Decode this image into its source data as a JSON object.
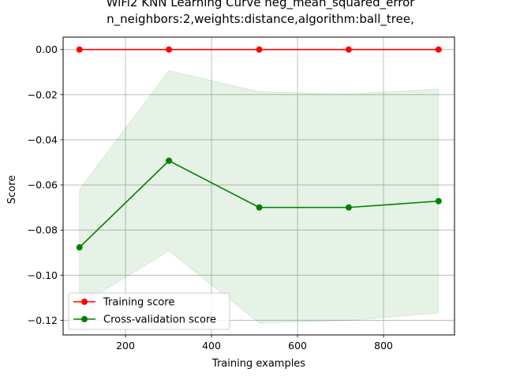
{
  "chart_data": {
    "type": "line",
    "title_lines": [
      "WiFi2 KNN Learning Curve neg_mean_squared_error",
      "n_neighbors:2,weights:distance,algorithm:ball_tree,"
    ],
    "xlabel": "Training examples",
    "ylabel": "Score",
    "xlim": [
      55,
      965
    ],
    "ylim": [
      -0.1265,
      0.0055
    ],
    "xticks": [
      200,
      400,
      600,
      800
    ],
    "xtick_labels": [
      "200",
      "400",
      "600",
      "800"
    ],
    "yticks": [
      0.0,
      -0.02,
      -0.04,
      -0.06,
      -0.08,
      -0.1,
      -0.12
    ],
    "ytick_labels": [
      "0.00",
      "−0.02",
      "−0.04",
      "−0.06",
      "−0.08",
      "−0.10",
      "−0.12"
    ],
    "grid": true,
    "legend_position": "lower-left",
    "x": [
      93,
      301,
      511,
      719,
      928
    ],
    "series": [
      {
        "name": "Training score",
        "color": "#ff0000",
        "values": [
          0.0,
          0.0,
          0.0,
          0.0,
          0.0
        ],
        "band_lower": [
          0.0,
          0.0,
          0.0,
          0.0,
          0.0
        ],
        "band_upper": [
          0.0,
          0.0,
          0.0,
          0.0,
          0.0
        ]
      },
      {
        "name": "Cross-validation score",
        "color": "#008000",
        "values": [
          -0.0877,
          -0.0493,
          -0.07,
          -0.07,
          -0.0672
        ],
        "band_lower": [
          -0.1135,
          -0.0893,
          -0.1212,
          -0.1202,
          -0.1168
        ],
        "band_upper": [
          -0.062,
          -0.0093,
          -0.0187,
          -0.0197,
          -0.0175
        ]
      }
    ],
    "band_color": "#008000"
  }
}
